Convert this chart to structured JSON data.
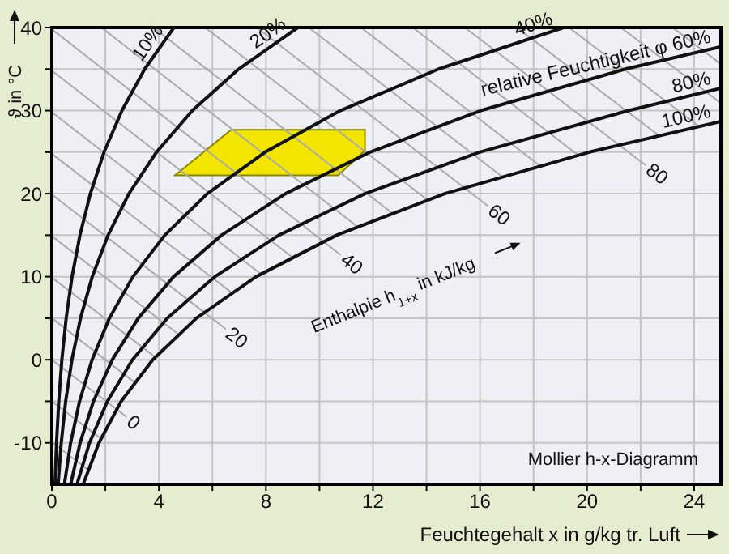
{
  "chart_data": {
    "type": "line",
    "xlabel": "Feuchtegehalt x in g/kg tr. Luft",
    "ylabel": "ϑ in °C",
    "annotations": [
      "Enthalpie h$_{1+x}$ in kJ/kg",
      "Mollier h-x-Diagramm"
    ],
    "xlim": [
      0,
      25
    ],
    "xticks": [
      0,
      {
        "value": 2,
        "label": null
      },
      4,
      {
        "value": 6,
        "label": null
      },
      8,
      {
        "value": 10,
        "label": null
      },
      12,
      {
        "value": 14,
        "label": null
      },
      16,
      {
        "value": 18,
        "label": null
      },
      20,
      {
        "value": 22,
        "label": null
      },
      24
    ],
    "ylim": [
      -15,
      40
    ],
    "yticks": [
      -10,
      {
        "value": -5,
        "label": null
      },
      0,
      {
        "value": 5,
        "label": null
      },
      10,
      {
        "value": 15,
        "label": null
      },
      20,
      {
        "value": 25,
        "label": null
      },
      30,
      {
        "value": 35,
        "label": null
      },
      40
    ],
    "grid": true,
    "legend": false,
    "marker": "none",
    "series": [
      {
        "color": "#aaaaaa",
        "x": [
          0,
          1.37
        ],
        "values": [
          -9.9,
          -13.3
        ]
      },
      {
        "color": "#aaaaaa",
        "x": [
          0,
          1.84
        ],
        "values": [
          -5,
          -9.5
        ]
      },
      {
        "name": "0",
        "color": "#aaaaaa",
        "x": [
          0,
          2.8
        ],
        "values": [
          0,
          -6.9
        ]
      },
      {
        "color": "#aaaaaa",
        "x": [
          0,
          3.12
        ],
        "values": [
          5,
          -2.8
        ]
      },
      {
        "color": "#aaaaaa",
        "x": [
          0,
          3.87
        ],
        "values": [
          9.9,
          0.3
        ]
      },
      {
        "color": "#aaaaaa",
        "x": [
          0,
          4.76
        ],
        "values": [
          14.9,
          3.0
        ]
      },
      {
        "name": "20",
        "color": "#aaaaaa",
        "x": [
          0,
          6.5
        ],
        "values": [
          19.9,
          3.7
        ]
      },
      {
        "color": "#aaaaaa",
        "x": [
          0,
          6.75
        ],
        "values": [
          24.8,
          8.0
        ]
      },
      {
        "color": "#aaaaaa",
        "x": [
          0,
          7.82
        ],
        "values": [
          29.8,
          10.3
        ]
      },
      {
        "color": "#aaaaaa",
        "x": [
          0,
          9.0
        ],
        "values": [
          34.8,
          12.3
        ]
      },
      {
        "name": "40",
        "color": "#aaaaaa",
        "x": [
          0,
          10.8
        ],
        "values": [
          39.8,
          12.6
        ]
      },
      {
        "color": "#aaaaaa",
        "x": [
          1.85,
          11.43
        ],
        "values": [
          40,
          16.0
        ]
      },
      {
        "color": "#aaaaaa",
        "x": [
          3.79,
          12.74
        ],
        "values": [
          40,
          17.6
        ]
      },
      {
        "color": "#aaaaaa",
        "x": [
          5.73,
          14.05
        ],
        "values": [
          40,
          19.2
        ]
      },
      {
        "name": "60",
        "color": "#aaaaaa",
        "x": [
          7.66,
          16.3
        ],
        "values": [
          40,
          18.5
        ]
      },
      {
        "color": "#aaaaaa",
        "x": [
          9.6,
          16.84
        ],
        "values": [
          40,
          22.0
        ]
      },
      {
        "color": "#aaaaaa",
        "x": [
          11.55,
          18.26
        ],
        "values": [
          40,
          23.3
        ]
      },
      {
        "color": "#aaaaaa",
        "x": [
          13.49,
          19.68
        ],
        "values": [
          40,
          24.6
        ]
      },
      {
        "name": "80",
        "color": "#aaaaaa",
        "x": [
          15.43,
          22.2
        ],
        "values": [
          40,
          23.4
        ]
      },
      {
        "color": "#aaaaaa",
        "x": [
          17.38,
          22.68
        ],
        "values": [
          40,
          27.0
        ]
      },
      {
        "color": "#aaaaaa",
        "x": [
          19.32,
          24.18
        ],
        "values": [
          40,
          28.1
        ]
      },
      {
        "color": "#aaaaaa",
        "x": [
          21.26,
          25
        ],
        "values": [
          40,
          30.9
        ]
      },
      {
        "color": "#aaaaaa",
        "x": [
          23.2,
          25
        ],
        "values": [
          40,
          35.6
        ]
      },
      {
        "type": "area",
        "color": "#f2e600",
        "x": [
          4.6,
          6.7,
          11.7,
          11.7,
          10.7
        ],
        "values": [
          22.2,
          27.7,
          27.7,
          25.2,
          22.2
        ]
      },
      {
        "name": "10%",
        "color": "#111111",
        "x": [
          0.117,
          0.176,
          0.259,
          0.375,
          0.536,
          0.755,
          1.05,
          1.44,
          1.95,
          2.62,
          3.47,
          4.56
        ],
        "values": [
          -15,
          -10,
          -5,
          0,
          5,
          10,
          15,
          20,
          25,
          30,
          35,
          40
        ]
      },
      {
        "name": "20%",
        "color": "#111111",
        "x": [
          0.235,
          0.351,
          0.517,
          0.751,
          1.072,
          1.51,
          2.1,
          2.88,
          3.91,
          5.25,
          6.98,
          9.19
        ],
        "values": [
          -15,
          -10,
          -5,
          0,
          5,
          10,
          15,
          20,
          25,
          30,
          35,
          40
        ]
      },
      {
        "name": "40%",
        "color": "#111111",
        "x": [
          0.469,
          0.703,
          1.036,
          1.504,
          2.149,
          3.03,
          4.22,
          5.81,
          7.97,
          10.78,
          14.45,
          19.12
        ],
        "values": [
          -15,
          -10,
          -5,
          0,
          5,
          10,
          15,
          20,
          25,
          30,
          35,
          40
        ]
      },
      {
        "name": "relative Feuchtigkeit φ 60%",
        "color": "#111111",
        "x": [
          0.704,
          1.056,
          1.555,
          2.259,
          3.229,
          4.55,
          6.34,
          8.73,
          11.89,
          16.03,
          21.43,
          25
        ],
        "values": [
          -15,
          -10,
          -5,
          0,
          5,
          10,
          15,
          20,
          25,
          30,
          35,
          37.7
        ]
      },
      {
        "name": "80%",
        "color": "#111111",
        "x": [
          0.939,
          1.408,
          2.075,
          3.012,
          4.31,
          6.09,
          8.48,
          11.7,
          15.98,
          21.55,
          25
        ],
        "values": [
          -15,
          -10,
          -5,
          0,
          5,
          10,
          15,
          20,
          25,
          30,
          32.7
        ]
      },
      {
        "name": "100%",
        "color": "#111111",
        "x": [
          1.17,
          1.76,
          2.59,
          3.77,
          5.4,
          7.63,
          10.64,
          14.68,
          20.08,
          25
        ],
        "values": [
          -15,
          -10,
          -5,
          0,
          5,
          10,
          15,
          20,
          25,
          28.7
        ]
      }
    ]
  }
}
